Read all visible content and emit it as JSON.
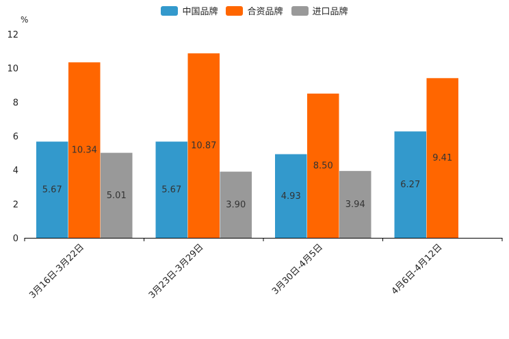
{
  "chart_data": {
    "type": "bar",
    "title": "",
    "ylabel": "%",
    "xlabel": "",
    "ylim": [
      0,
      12
    ],
    "yticks": [
      0,
      2,
      4,
      6,
      8,
      10,
      12
    ],
    "categories": [
      "3月16日-3月22日",
      "3月23日-3月29日",
      "3月30日-4月5日",
      "4月6日-4月12日"
    ],
    "series": [
      {
        "name": "中国品牌",
        "color": "#3399cc",
        "values": [
          5.67,
          5.67,
          4.93,
          6.27
        ],
        "labels": [
          "5.67",
          "5.67",
          "4.93",
          "6.27"
        ]
      },
      {
        "name": "合资品牌",
        "color": "#ff6600",
        "values": [
          10.34,
          10.87,
          8.5,
          9.41
        ],
        "labels": [
          "10.34",
          "10.87",
          "8.50",
          "9.41"
        ]
      },
      {
        "name": "进口品牌",
        "color": "#999999",
        "values": [
          5.01,
          3.9,
          3.94,
          null
        ],
        "labels": [
          "5.01",
          "3.90",
          "3.94",
          ""
        ]
      }
    ],
    "legend_position": "top-center"
  }
}
